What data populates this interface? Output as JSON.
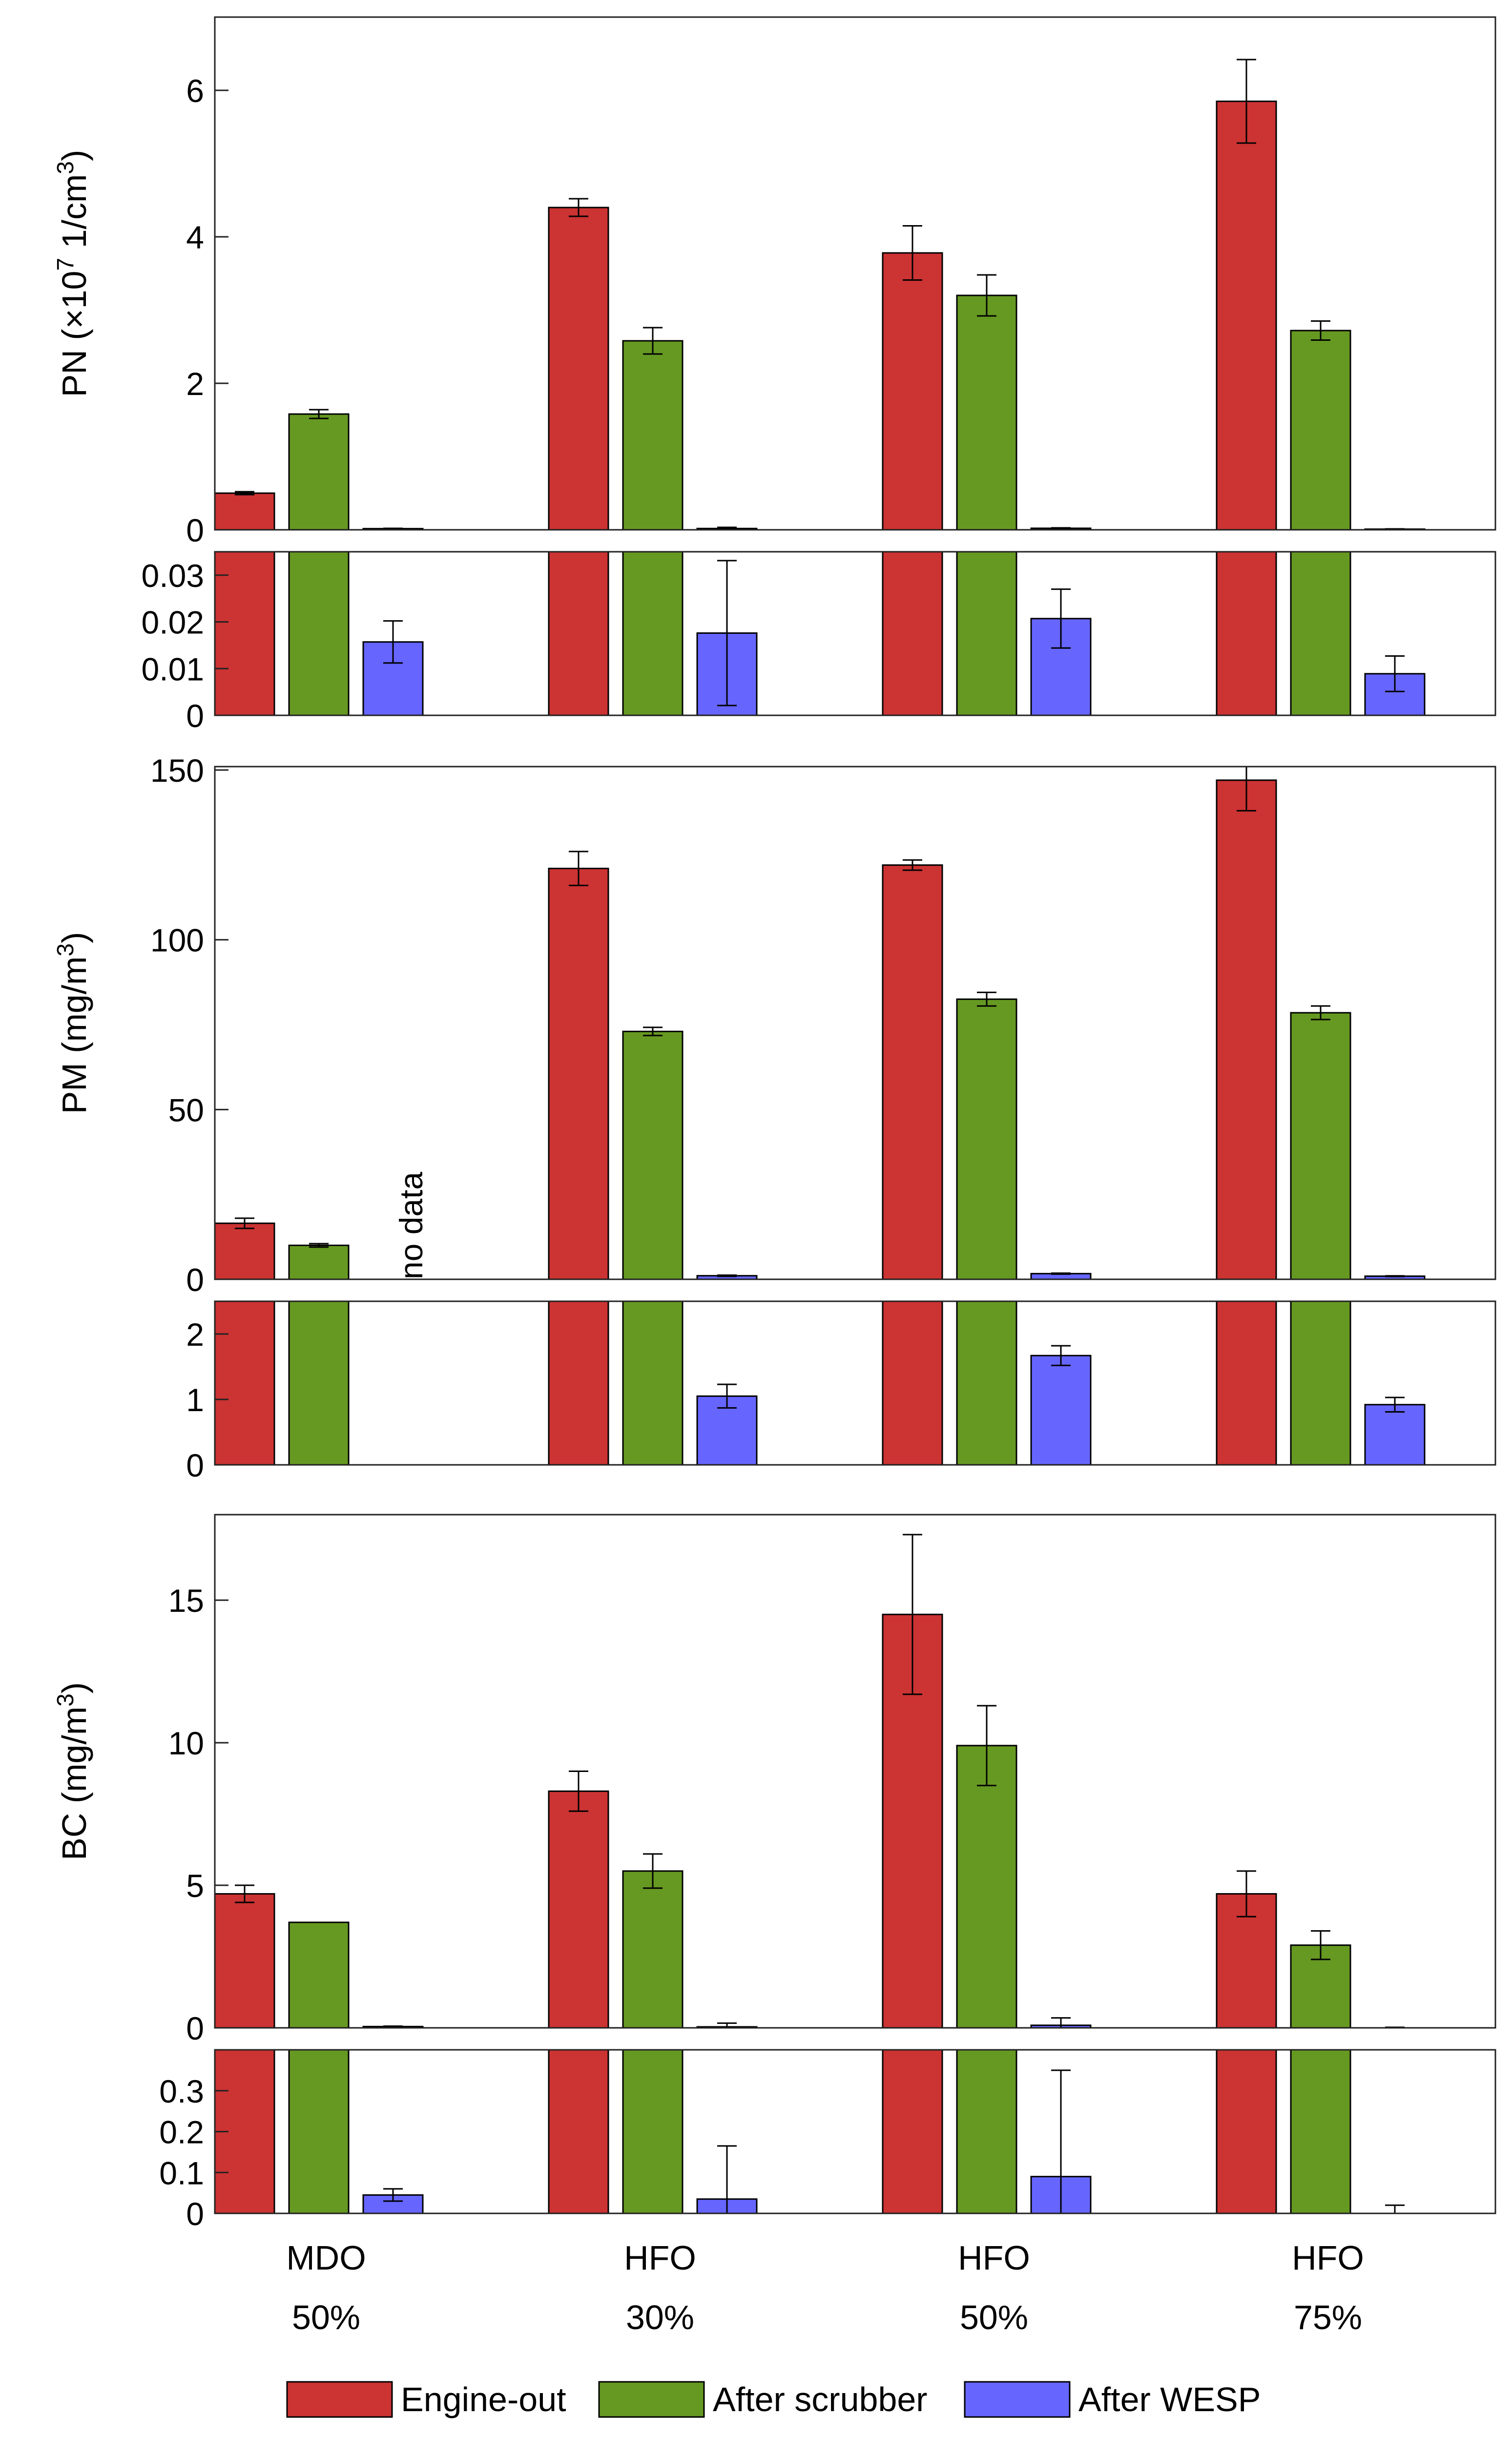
{
  "chart_data": [
    {
      "type": "bar",
      "ylabel": {
        "prefix": "PN (×10",
        "sup": "7",
        "mid": " 1/cm",
        "sup2": "3",
        "suffix": ")"
      },
      "ylim": [
        0,
        7
      ],
      "yticks": [
        0,
        2,
        4,
        6
      ],
      "ytick_labels": [
        "0",
        "2",
        "4",
        "6"
      ],
      "series": [
        {
          "name": "Engine-out",
          "values": [
            0.5,
            4.4,
            3.78,
            5.85
          ],
          "errors": [
            0.02,
            0.12,
            0.37,
            0.57
          ]
        },
        {
          "name": "After scrubber",
          "values": [
            1.58,
            2.58,
            3.2,
            2.72
          ],
          "errors": [
            0.06,
            0.18,
            0.28,
            0.13
          ]
        },
        {
          "name": "After WESP",
          "values": [
            0.0157,
            0.0176,
            0.0207,
            0.0089
          ],
          "errors": [
            0.0045,
            0.0155,
            0.0063,
            0.0038
          ]
        }
      ]
    },
    {
      "type": "bar",
      "ylabel": null,
      "ylim": [
        0,
        0.035
      ],
      "yticks": [
        0,
        0.01,
        0.02,
        0.03
      ],
      "ytick_labels": [
        "0",
        "0.01",
        "0.02",
        "0.03"
      ],
      "series": [
        {
          "name": "Engine-out",
          "values": [
            0.5,
            4.4,
            3.78,
            5.85
          ],
          "errors": null
        },
        {
          "name": "After scrubber",
          "values": [
            1.58,
            2.58,
            3.2,
            2.72
          ],
          "errors": null
        },
        {
          "name": "After WESP",
          "values": [
            0.0157,
            0.0176,
            0.0207,
            0.0089
          ],
          "errors": [
            0.0045,
            0.0155,
            0.0063,
            0.0038
          ]
        }
      ]
    },
    {
      "type": "bar",
      "ylabel": {
        "prefix": "PM (mg/m",
        "sup": "3",
        "suffix": ")"
      },
      "ylim": [
        0,
        151
      ],
      "yticks": [
        0,
        50,
        100,
        150
      ],
      "ytick_labels": [
        "0",
        "50",
        "100",
        "150"
      ],
      "annotation": "no data",
      "series": [
        {
          "name": "Engine-out",
          "values": [
            16.5,
            121,
            122,
            147
          ],
          "errors": [
            1.5,
            5,
            1.5,
            9
          ]
        },
        {
          "name": "After scrubber",
          "values": [
            10,
            73,
            82.5,
            78.5
          ],
          "errors": [
            0.5,
            1.2,
            2,
            2
          ]
        },
        {
          "name": "After WESP",
          "values": [
            null,
            1.05,
            1.67,
            0.92
          ],
          "errors": [
            null,
            0.18,
            0.15,
            0.11
          ]
        }
      ]
    },
    {
      "type": "bar",
      "ylabel": null,
      "ylim": [
        0,
        2.5
      ],
      "yticks": [
        0,
        1,
        2
      ],
      "ytick_labels": [
        "0",
        "1",
        "2"
      ],
      "series": [
        {
          "name": "Engine-out",
          "values": [
            16.5,
            121,
            122,
            147
          ],
          "errors": null
        },
        {
          "name": "After scrubber",
          "values": [
            10,
            73,
            82.5,
            78.5
          ],
          "errors": null
        },
        {
          "name": "After WESP",
          "values": [
            null,
            1.05,
            1.67,
            0.92
          ],
          "errors": [
            null,
            0.18,
            0.15,
            0.11
          ]
        }
      ]
    },
    {
      "type": "bar",
      "ylabel": {
        "prefix": "BC (mg/m",
        "sup": "3",
        "suffix": ")"
      },
      "ylim": [
        0,
        18
      ],
      "yticks": [
        0,
        5,
        10,
        15
      ],
      "ytick_labels": [
        "0",
        "5",
        "10",
        "15"
      ],
      "series": [
        {
          "name": "Engine-out",
          "values": [
            4.7,
            8.3,
            14.5,
            4.7
          ],
          "errors": [
            0.3,
            0.7,
            2.8,
            0.8
          ]
        },
        {
          "name": "After scrubber",
          "values": [
            3.7,
            5.5,
            9.9,
            2.9
          ],
          "errors": [
            0,
            0.6,
            1.4,
            0.5
          ]
        },
        {
          "name": "After WESP",
          "values": [
            0.045,
            0.035,
            0.09,
            0
          ],
          "errors": [
            0.015,
            0.13,
            0.26,
            0.02
          ]
        }
      ]
    },
    {
      "type": "bar",
      "ylabel": null,
      "ylim": [
        0,
        0.4
      ],
      "yticks": [
        0,
        0.1,
        0.2,
        0.3
      ],
      "ytick_labels": [
        "0",
        "0.1",
        "0.2",
        "0.3"
      ],
      "categories": [
        {
          "fuel": "MDO",
          "load": "50%"
        },
        {
          "fuel": "HFO",
          "load": "30%"
        },
        {
          "fuel": "HFO",
          "load": "50%"
        },
        {
          "fuel": "HFO",
          "load": "75%"
        }
      ],
      "series": [
        {
          "name": "Engine-out",
          "values": [
            4.7,
            8.3,
            14.5,
            4.7
          ],
          "errors": null
        },
        {
          "name": "After scrubber",
          "values": [
            3.7,
            5.5,
            9.9,
            2.9
          ],
          "errors": null
        },
        {
          "name": "After WESP",
          "values": [
            0.045,
            0.035,
            0.09,
            0
          ],
          "errors": [
            0.015,
            0.13,
            0.26,
            0.02
          ]
        }
      ]
    }
  ],
  "legend": {
    "placement": "bottom",
    "entries": [
      {
        "label": "Engine-out",
        "color": "#cc3333"
      },
      {
        "label": "After scrubber",
        "color": "#669922"
      },
      {
        "label": "After WESP",
        "color": "#6666ff"
      }
    ]
  },
  "colors": {
    "engine_out": "#cc3333",
    "after_scrubber": "#669922",
    "after_wesp": "#6666ff"
  }
}
